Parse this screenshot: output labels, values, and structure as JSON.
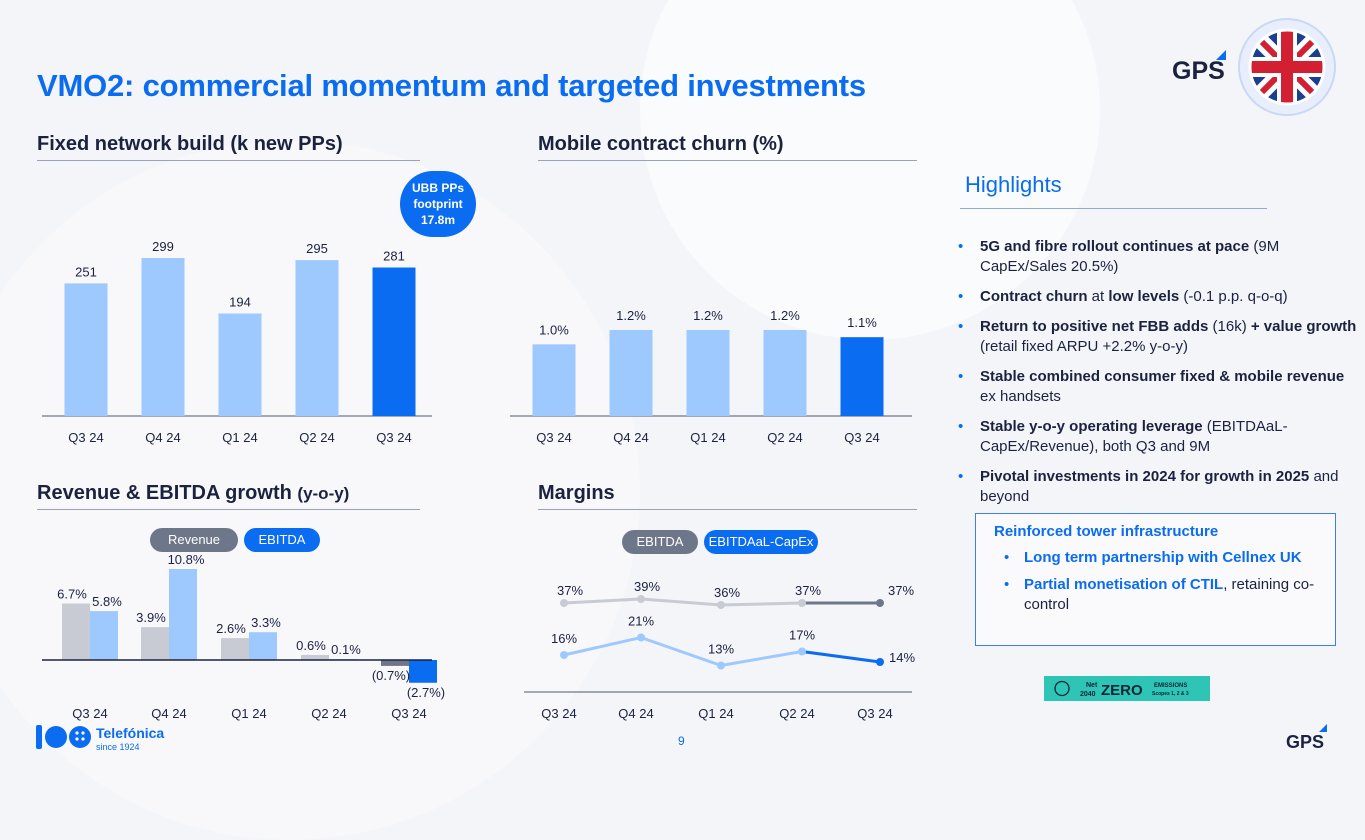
{
  "title": "VMO2: commercial momentum and targeted investments",
  "page_number": "9",
  "brand": {
    "gps": "GPS",
    "telefonica": "Telefónica",
    "since": "since 1924"
  },
  "colors": {
    "blue": "#0a6cf0",
    "light_blue": "#9ec9ff",
    "grey": "#c8cbd3",
    "dark_grey": "#6e7789",
    "navy": "#1b2240"
  },
  "icons": {
    "flag": "uk-flag-icon",
    "gps": "gps-logo-icon",
    "telefonica": "telefonica-logo-icon",
    "net_zero": "net-zero-badge-icon"
  },
  "sections": {
    "fixed": {
      "title": "Fixed network build (k new PPs)"
    },
    "churn": {
      "title": "Mobile contract churn (%)"
    },
    "rev": {
      "title_main": "Revenue & EBITDA growth",
      "title_small": "(y-o-y)"
    },
    "margins": {
      "title": "Margins"
    }
  },
  "bubble": {
    "l1": "UBB PPs",
    "l2": "footprint",
    "l3": "17.8m"
  },
  "legend_rev": {
    "revenue": "Revenue",
    "ebitda": "EBITDA"
  },
  "legend_margins": {
    "ebitda": "EBITDA",
    "capex": "EBITDAaL-CapEx"
  },
  "highlights": {
    "title": "Highlights",
    "items": [
      {
        "b": "5G and fibre rollout continues at pace",
        "t": " (9M CapEx/Sales 20.5%)"
      },
      {
        "b": "Contract churn",
        "t": " at ",
        "b2": "low levels",
        "t2": " (-0.1 p.p. q-o-q)"
      },
      {
        "b": "Return to positive net FBB adds",
        "t": " (16k) ",
        "b2": "+ value growth",
        "t2": " (retail fixed ARPU +2.2% y-o-y)"
      },
      {
        "b": "Stable combined consumer fixed & mobile revenue",
        "t": " ex handsets"
      },
      {
        "b": "Stable y-o-y operating leverage",
        "t": " (EBITDAaL-CapEx/Revenue), both Q3 and 9M"
      },
      {
        "b": "Pivotal investments in 2024 for growth in 2025",
        "t": " and beyond"
      }
    ]
  },
  "box": {
    "title": "Reinforced tower infrastructure",
    "items": [
      {
        "b": "Long term partnership with Cellnex UK",
        "t": ""
      },
      {
        "b": "Partial monetisation of CTIL",
        "t": ", retaining co-control"
      }
    ]
  },
  "net_zero": {
    "net": "Net",
    "year": "2040",
    "zero": "ZERO",
    "emissions": "EMISSIONS",
    "scopes": "Scopes 1, 2 & 3"
  },
  "chart_data": [
    {
      "type": "bar",
      "title": "Fixed network build (k new PPs)",
      "categories": [
        "Q3 24",
        "Q4 24",
        "Q1 24",
        "Q2 24",
        "Q3 24"
      ],
      "values": [
        251,
        299,
        194,
        295,
        281
      ],
      "labels": [
        "251",
        "299",
        "194",
        "295",
        "281"
      ],
      "highlight_last": true
    },
    {
      "type": "bar",
      "title": "Mobile contract churn (%)",
      "categories": [
        "Q3 24",
        "Q4 24",
        "Q1 24",
        "Q2 24",
        "Q3 24"
      ],
      "values": [
        1.0,
        1.2,
        1.2,
        1.2,
        1.1
      ],
      "labels": [
        "1.0%",
        "1.2%",
        "1.2%",
        "1.2%",
        "1.1%"
      ],
      "highlight_last": true
    },
    {
      "type": "bar",
      "title": "Revenue & EBITDA growth (y-o-y)",
      "categories": [
        "Q3 24",
        "Q4 24",
        "Q1 24",
        "Q2 24",
        "Q3 24"
      ],
      "series": [
        {
          "name": "Revenue",
          "values": [
            6.7,
            3.9,
            2.6,
            0.6,
            -0.7
          ],
          "labels": [
            "6.7%",
            "3.9%",
            "2.6%",
            "0.6%",
            "(0.7%)"
          ]
        },
        {
          "name": "EBITDA",
          "values": [
            5.8,
            10.8,
            3.3,
            0.1,
            -2.7
          ],
          "labels": [
            "5.8%",
            "10.8%",
            "3.3%",
            "0.1%",
            "(2.7%)"
          ]
        }
      ]
    },
    {
      "type": "line",
      "title": "Margins",
      "categories": [
        "Q3 24",
        "Q4 24",
        "Q1 24",
        "Q2 24",
        "Q3 24"
      ],
      "series": [
        {
          "name": "EBITDA",
          "values": [
            37,
            39,
            36,
            37,
            37
          ],
          "labels": [
            "37%",
            "39%",
            "36%",
            "37%",
            "37%"
          ]
        },
        {
          "name": "EBITDAaL-CapEx",
          "values": [
            16,
            21,
            13,
            17,
            14
          ],
          "labels": [
            "16%",
            "21%",
            "13%",
            "17%",
            "14%"
          ]
        }
      ]
    }
  ]
}
